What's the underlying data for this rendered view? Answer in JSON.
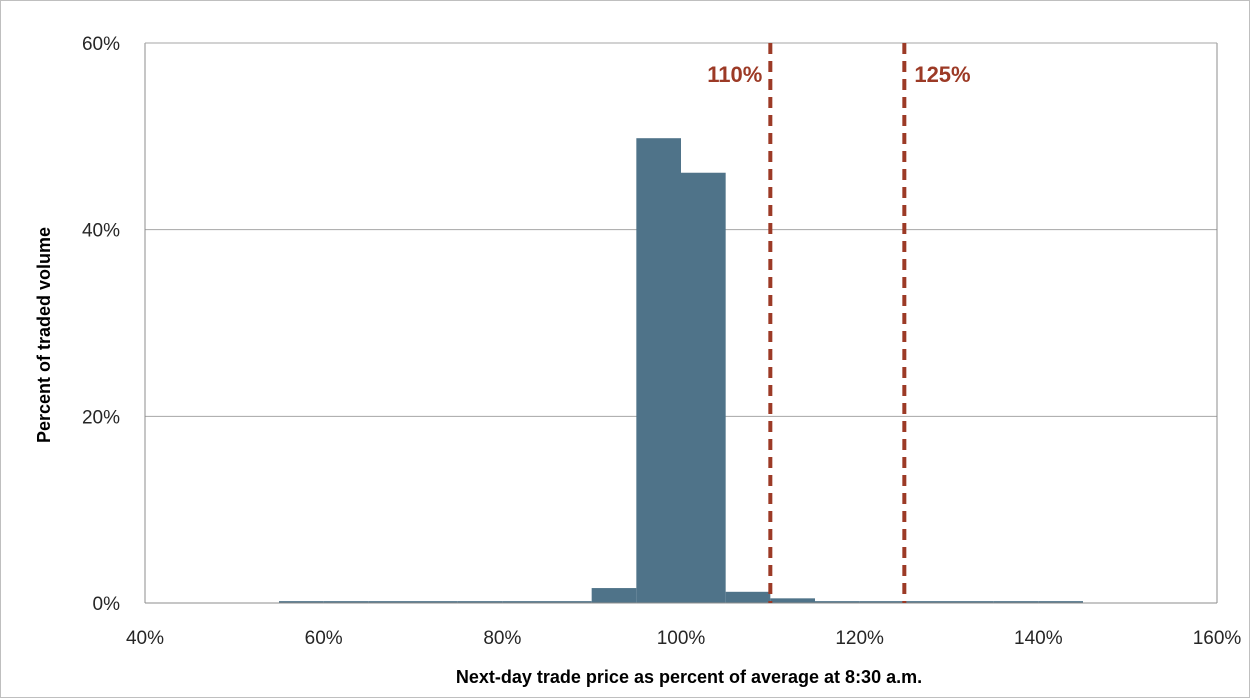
{
  "chart_data": {
    "type": "bar",
    "xlabel": "Next-day trade price as percent of average at 8:30 a.m.",
    "ylabel": "Percent of traded volume",
    "xlim": [
      40,
      160
    ],
    "ylim": [
      0,
      60
    ],
    "x_ticks": [
      "40%",
      "60%",
      "80%",
      "100%",
      "120%",
      "140%",
      "160%"
    ],
    "y_ticks": [
      "0%",
      "20%",
      "40%",
      "60%"
    ],
    "grid": true,
    "bin_width": 5,
    "bins": [
      {
        "start": 55,
        "value": 0.2
      },
      {
        "start": 60,
        "value": 0.2
      },
      {
        "start": 65,
        "value": 0.2
      },
      {
        "start": 70,
        "value": 0.2
      },
      {
        "start": 75,
        "value": 0.2
      },
      {
        "start": 80,
        "value": 0.2
      },
      {
        "start": 85,
        "value": 0.2
      },
      {
        "start": 90,
        "value": 1.6
      },
      {
        "start": 95,
        "value": 49.8
      },
      {
        "start": 100,
        "value": 46.1
      },
      {
        "start": 105,
        "value": 1.2
      },
      {
        "start": 110,
        "value": 0.5
      },
      {
        "start": 115,
        "value": 0.2
      },
      {
        "start": 120,
        "value": 0.2
      },
      {
        "start": 125,
        "value": 0.2
      },
      {
        "start": 130,
        "value": 0.2
      },
      {
        "start": 135,
        "value": 0.2
      },
      {
        "start": 140,
        "value": 0.2
      }
    ],
    "reference_lines": [
      {
        "x": 110,
        "label": "110%",
        "label_side": "left"
      },
      {
        "x": 125,
        "label": "125%",
        "label_side": "right"
      }
    ],
    "colors": {
      "bar": "#4f7389",
      "reference": "#9c3a26",
      "grid": "#a6a6a6",
      "axis": "#8c8c8c"
    }
  }
}
